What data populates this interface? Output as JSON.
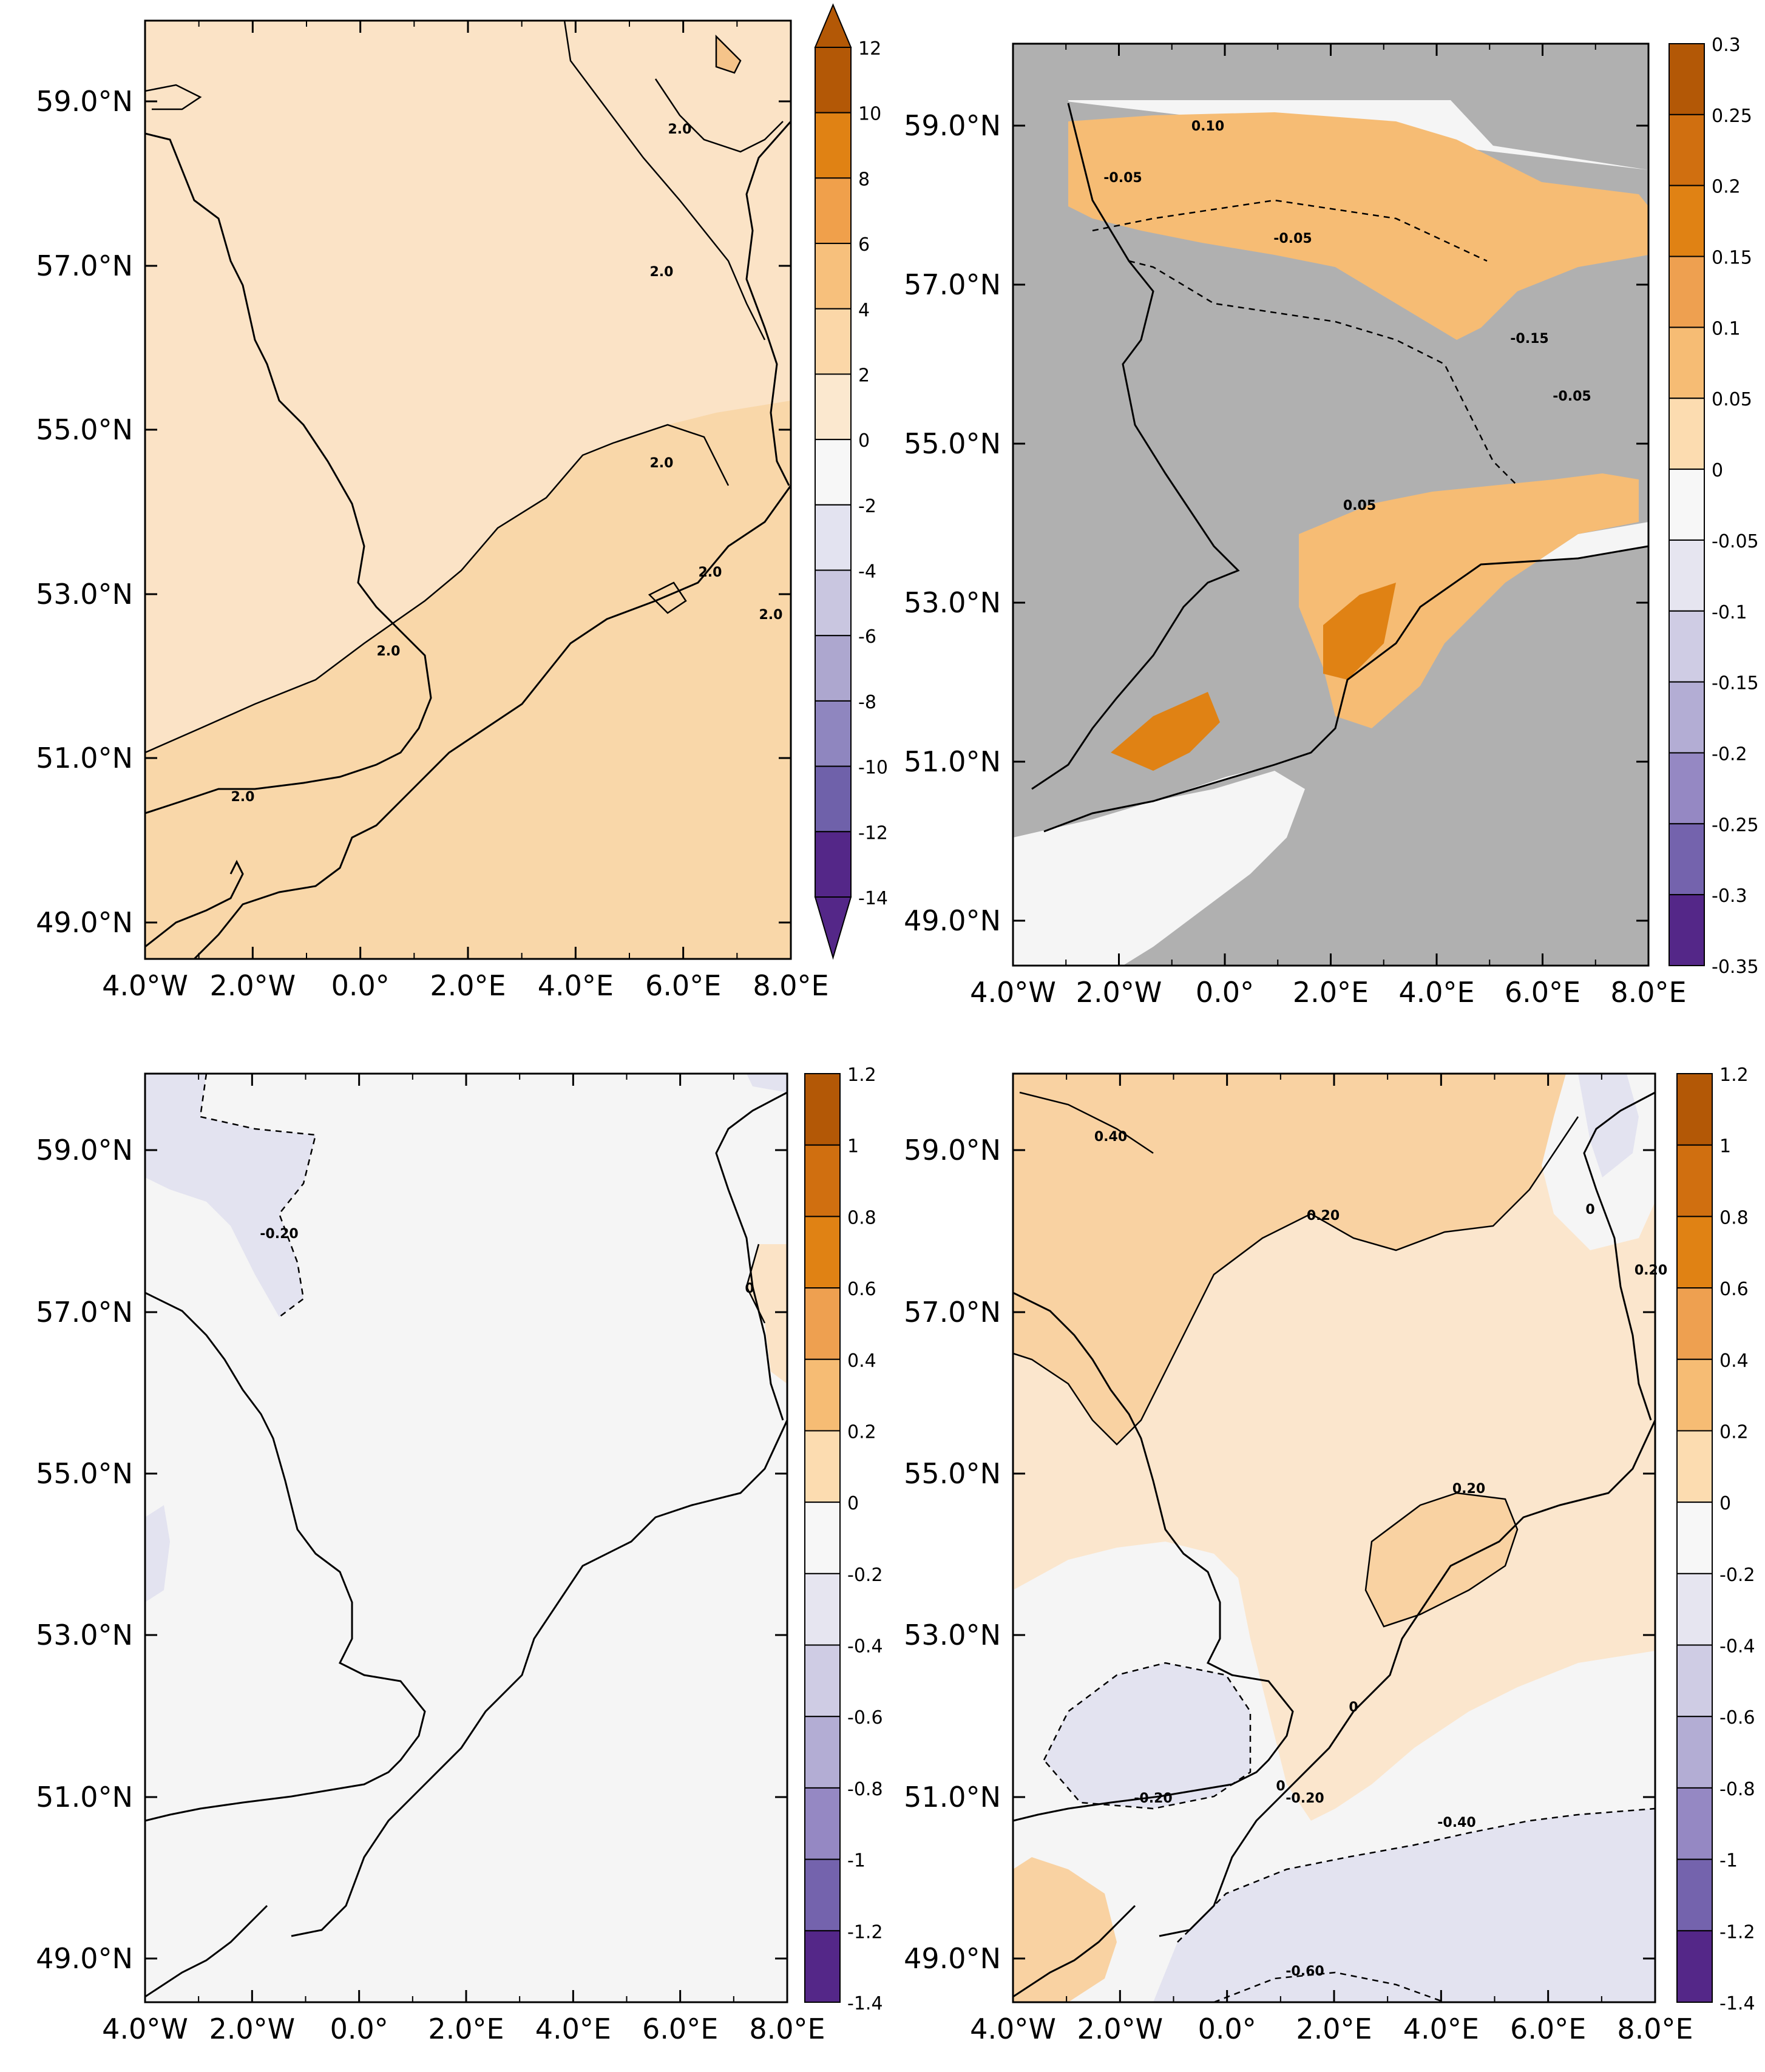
{
  "panels": [
    {
      "id": "top-left",
      "background_fill": "#fbe3c6",
      "lat_labels": [
        "59.0°N",
        "57.0°N",
        "55.0°N",
        "53.0°N",
        "51.0°N",
        "49.0°N"
      ],
      "lon_labels": [
        "4.0°W",
        "2.0°W",
        "0.0°",
        "2.0°E",
        "4.0°E",
        "6.0°E",
        "8.0°E"
      ],
      "contour_labels": [
        "2.0",
        "2.0",
        "2.0",
        "2.0",
        "2.0",
        "2.0",
        "2.0"
      ],
      "colorbar": {
        "ticks": [
          "12",
          "10",
          "8",
          "6",
          "4",
          "2",
          "0",
          "-2",
          "-4",
          "-6",
          "-8",
          "-10",
          "-12",
          "-14"
        ],
        "colors": [
          "#b35806",
          "#e08214",
          "#f0a04b",
          "#f7c07c",
          "#fbd7a8",
          "#fbe8cf",
          "#f7f7f7",
          "#e3e3f0",
          "#c9c6e0",
          "#ada7cf",
          "#8f86bf",
          "#6f61aa",
          "#542788"
        ],
        "arrows": true
      }
    },
    {
      "id": "top-right",
      "background_fill": "#b0b0b0",
      "lat_labels": [
        "59.0°N",
        "57.0°N",
        "55.0°N",
        "53.0°N",
        "51.0°N",
        "49.0°N"
      ],
      "lon_labels": [
        "4.0°W",
        "2.0°W",
        "0.0°",
        "2.0°E",
        "4.0°E",
        "6.0°E",
        "8.0°E"
      ],
      "contour_labels": [
        "0.10",
        "-0.05",
        "-0.05",
        "-0.15",
        "-0.05",
        "0.05"
      ],
      "colorbar": {
        "ticks": [
          "0.3",
          "0.25",
          "0.2",
          "0.15",
          "0.1",
          "0.05",
          "0",
          "-0.05",
          "-0.1",
          "-0.15",
          "-0.2",
          "-0.25",
          "-0.3",
          "-0.35"
        ],
        "colors": [
          "#b35806",
          "#d06f10",
          "#e08214",
          "#eea050",
          "#f6bc74",
          "#fcdcb0",
          "#f7f7f7",
          "#e6e5f0",
          "#cfcce4",
          "#b3add4",
          "#9588c3",
          "#7463ad",
          "#542788"
        ],
        "arrows": false
      }
    },
    {
      "id": "bottom-left",
      "background_fill": "#f5f5f5",
      "lat_labels": [
        "59.0°N",
        "57.0°N",
        "55.0°N",
        "53.0°N",
        "51.0°N",
        "49.0°N"
      ],
      "lon_labels": [
        "4.0°W",
        "2.0°W",
        "0.0°",
        "2.0°E",
        "4.0°E",
        "6.0°E",
        "8.0°E"
      ],
      "contour_labels": [
        "-0.20",
        "0"
      ],
      "colorbar": {
        "ticks": [
          "1.2",
          "1",
          "0.8",
          "0.6",
          "0.4",
          "0.2",
          "0",
          "-0.2",
          "-0.4",
          "-0.6",
          "-0.8",
          "-1",
          "-1.2",
          "-1.4"
        ],
        "colors": [
          "#b35806",
          "#d06f10",
          "#e08214",
          "#eea050",
          "#f6bc74",
          "#fcdcb0",
          "#f7f7f7",
          "#e6e5f0",
          "#cfcce4",
          "#b3add4",
          "#9588c3",
          "#7463ad",
          "#542788"
        ],
        "arrows": false
      }
    },
    {
      "id": "bottom-right",
      "background_fill": "#fbe6cd",
      "lat_labels": [
        "59.0°N",
        "57.0°N",
        "55.0°N",
        "53.0°N",
        "51.0°N",
        "49.0°N"
      ],
      "lon_labels": [
        "4.0°W",
        "2.0°W",
        "0.0°",
        "2.0°E",
        "4.0°E",
        "6.0°E",
        "8.0°E"
      ],
      "contour_labels": [
        "0.40",
        "0.20",
        "0",
        "0.20",
        "0.20",
        "0",
        "-0.20",
        "-0.20",
        "-0.40",
        "-0.60",
        "0"
      ],
      "colorbar": {
        "ticks": [
          "1.2",
          "1",
          "0.8",
          "0.6",
          "0.4",
          "0.2",
          "0",
          "-0.2",
          "-0.4",
          "-0.6",
          "-0.8",
          "-1",
          "-1.2",
          "-1.4"
        ],
        "colors": [
          "#b35806",
          "#d06f10",
          "#e08214",
          "#eea050",
          "#f6bc74",
          "#fcdcb0",
          "#f7f7f7",
          "#e6e5f0",
          "#cfcce4",
          "#b3add4",
          "#9588c3",
          "#7463ad",
          "#542788"
        ],
        "arrows": false
      }
    }
  ]
}
